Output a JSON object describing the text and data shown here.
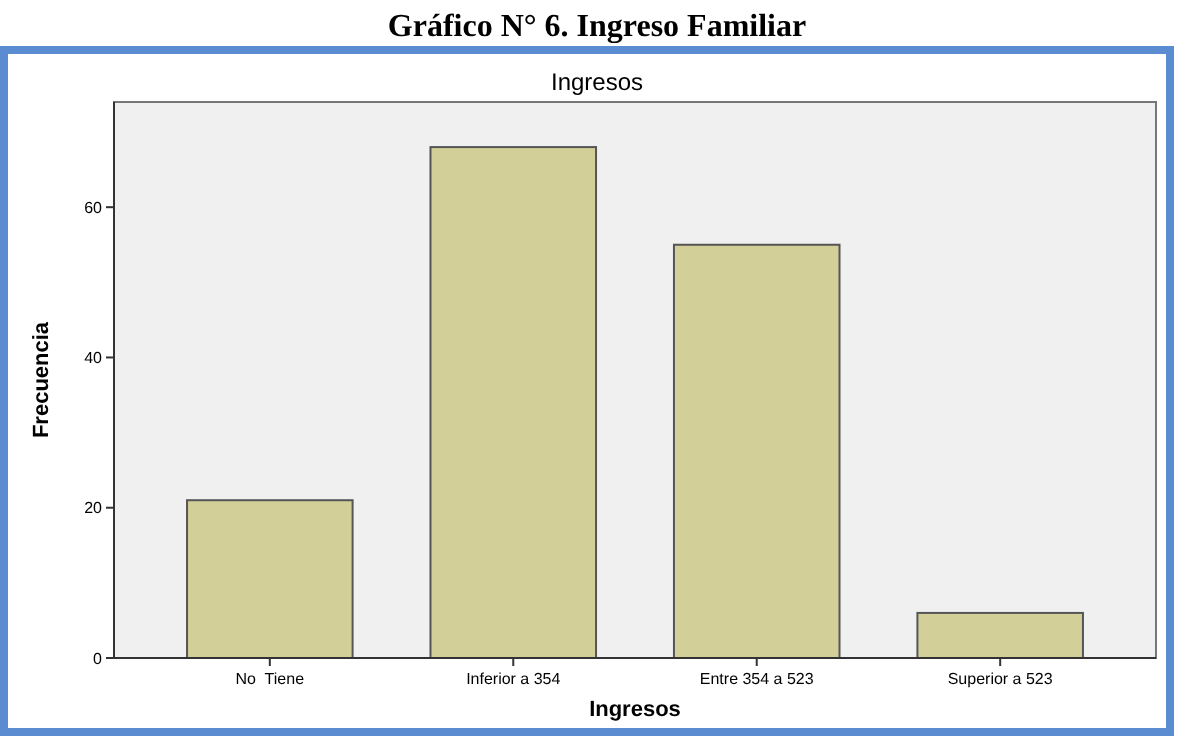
{
  "chart_data": {
    "type": "bar",
    "title": "Gráfico N° 6. Ingreso Familiar",
    "subtitle": "Ingresos",
    "xlabel": "Ingresos",
    "ylabel": "Frecuencia",
    "categories": [
      "No  Tiene",
      "Inferior a 354",
      "Entre 354 a 523",
      "Superior a 523"
    ],
    "values": [
      21,
      68,
      55,
      6
    ],
    "color": "#d3cf98",
    "ylim": [
      0,
      74
    ],
    "yticks": [
      0,
      20,
      40,
      60
    ],
    "grid": false
  }
}
